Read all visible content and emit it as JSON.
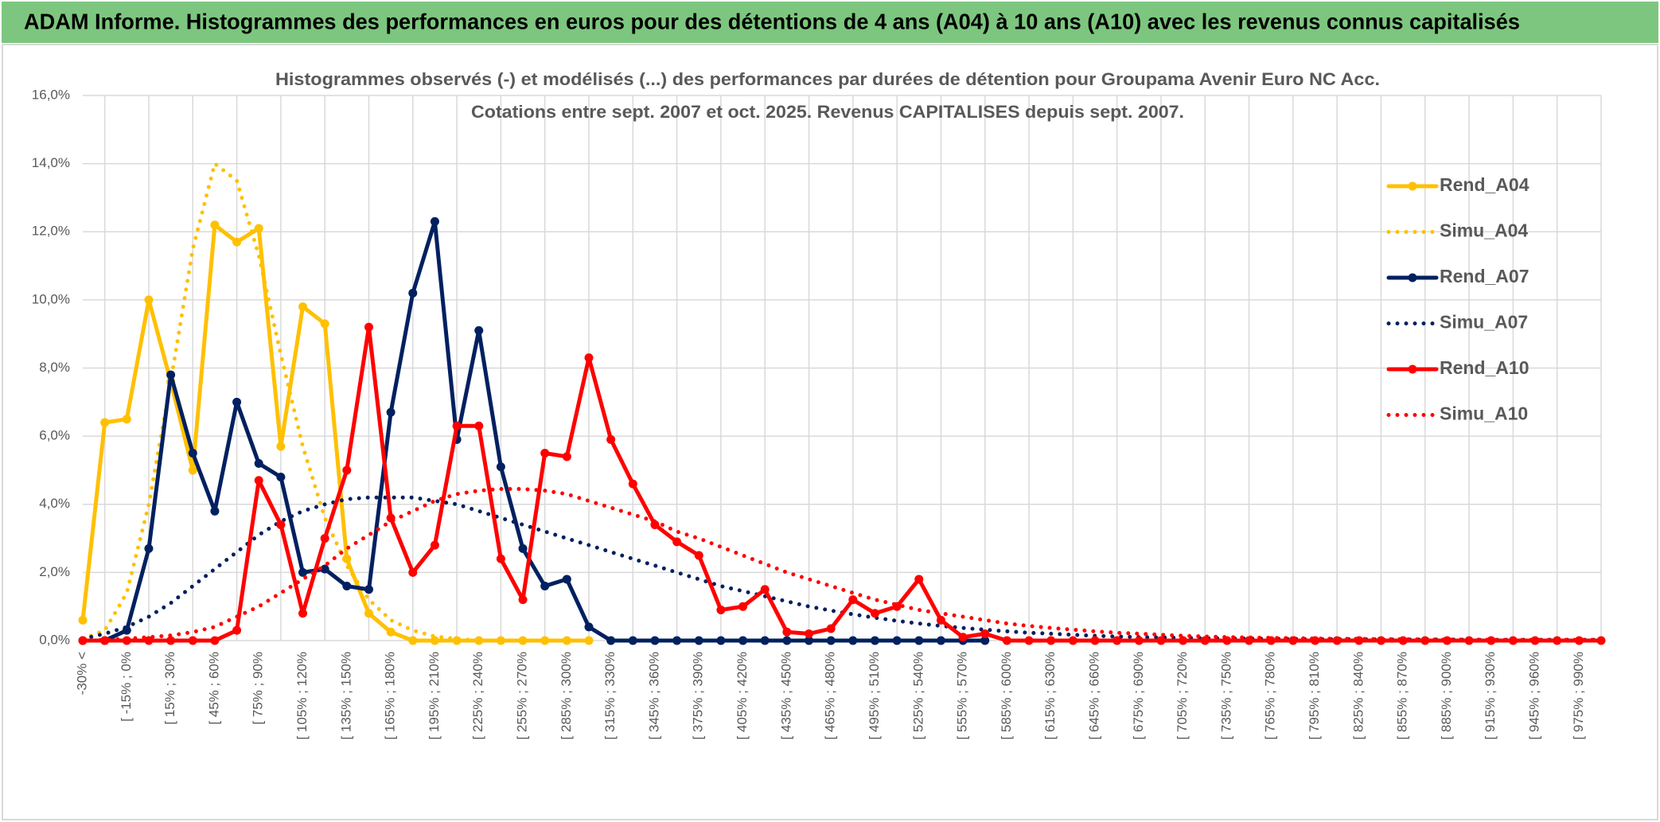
{
  "header": {
    "title": "ADAM Informe. Histogrammes des performances en euros pour des détentions de 4 ans (A04) à 10 ans (A10) avec les revenus connus capitalisés"
  },
  "chart_data": {
    "type": "line",
    "title": "Histogrammes observés (-) et modélisés (...) des performances par durées de détention pour Groupama Avenir Euro NC Acc.",
    "subtitle": "Cotations entre sept. 2007 et oct. 2025. Revenus CAPITALISES depuis sept. 2007.",
    "categories": [
      "-30% <",
      null,
      "[ -15% ; 0%",
      null,
      "[ 15% ; 30%",
      null,
      "[ 45% ; 60%",
      null,
      "[ 75% ; 90%",
      null,
      "[ 105% ; 120%",
      null,
      "[ 135% ; 150%",
      null,
      "[ 165% ; 180%",
      null,
      "[ 195% ; 210%",
      null,
      "[ 225% ; 240%",
      null,
      "[ 255% ; 270%",
      null,
      "[ 285% ; 300%",
      null,
      "[ 315% ; 330%",
      null,
      "[ 345% ; 360%",
      null,
      "[ 375% ; 390%",
      null,
      "[ 405% ; 420%",
      null,
      "[ 435% ; 450%",
      null,
      "[ 465% ; 480%",
      null,
      "[ 495% ; 510%",
      null,
      "[ 525% ; 540%",
      null,
      "[ 555% ; 570%",
      null,
      "[ 585% ; 600%",
      null,
      "[ 615% ; 630%",
      null,
      "[ 645% ; 660%",
      null,
      "[ 675% ; 690%",
      null,
      "[ 705% ; 720%",
      null,
      "[ 735% ; 750%",
      null,
      "[ 765% ; 780%",
      null,
      "[ 795% ; 810%",
      null,
      "[ 825% ; 840%",
      null,
      "[ 855% ; 870%",
      null,
      "[ 885% ; 900%",
      null,
      "[ 915% ; 930%",
      null,
      "[ 945% ; 960%",
      null,
      "[ 975% ; 990%",
      null
    ],
    "ylim": [
      0,
      16
    ],
    "yticks": [
      {
        "value": 0,
        "label": "0,0%"
      },
      {
        "value": 2,
        "label": "2,0%"
      },
      {
        "value": 4,
        "label": "4,0%"
      },
      {
        "value": 6,
        "label": "6,0%"
      },
      {
        "value": 8,
        "label": "8,0%"
      },
      {
        "value": 10,
        "label": "10,0%"
      },
      {
        "value": 12,
        "label": "12,0%"
      },
      {
        "value": 14,
        "label": "14,0%"
      },
      {
        "value": 16,
        "label": "16,0%"
      }
    ],
    "grid": true,
    "legend": "right",
    "series": [
      {
        "name": "Rend_A04",
        "color": "#FFC000",
        "style": "solid",
        "markers": true,
        "values": [
          0.6,
          6.4,
          6.5,
          10.0,
          7.6,
          5.0,
          12.2,
          11.7,
          12.1,
          5.7,
          9.8,
          9.3,
          2.4,
          0.8,
          0.25,
          0,
          0,
          0,
          0,
          0,
          0,
          0,
          0,
          0,
          null,
          null,
          null,
          null,
          null,
          null,
          null,
          null,
          null,
          null,
          null,
          null,
          null,
          null,
          null,
          null,
          null,
          null,
          null,
          null,
          null,
          null,
          null,
          null,
          null,
          null,
          null,
          null,
          null,
          null,
          null,
          null,
          null,
          null,
          null,
          null,
          null,
          null,
          null,
          null,
          null,
          null,
          null,
          null,
          null,
          null
        ]
      },
      {
        "name": "Simu_A04",
        "color": "#FFC000",
        "style": "dotted",
        "markers": false,
        "values": [
          0.05,
          0.3,
          1.4,
          4.0,
          7.6,
          11.5,
          14.0,
          13.5,
          11.3,
          8.4,
          5.7,
          3.6,
          2.2,
          1.2,
          0.6,
          0.3,
          0.12,
          0.05,
          0,
          0,
          0,
          0,
          0,
          0,
          null,
          null,
          null,
          null,
          null,
          null,
          null,
          null,
          null,
          null,
          null,
          null,
          null,
          null,
          null,
          null,
          null,
          null,
          null,
          null,
          null,
          null,
          null,
          null,
          null,
          null,
          null,
          null,
          null,
          null,
          null,
          null,
          null,
          null,
          null,
          null,
          null,
          null,
          null,
          null,
          null,
          null,
          null,
          null,
          null,
          null
        ]
      },
      {
        "name": "Rend_A07",
        "color": "#002060",
        "style": "solid",
        "markers": true,
        "values": [
          0,
          0,
          0.3,
          2.7,
          7.8,
          5.5,
          3.8,
          7.0,
          5.2,
          4.8,
          2.0,
          2.1,
          1.6,
          1.5,
          6.7,
          10.2,
          12.3,
          5.9,
          9.1,
          5.1,
          2.7,
          1.6,
          1.8,
          0.4,
          0,
          0,
          0,
          0,
          0,
          0,
          0,
          0,
          0,
          0,
          0,
          0,
          0,
          0,
          0,
          0,
          0,
          0,
          null,
          null,
          null,
          null,
          null,
          null,
          null,
          null,
          null,
          null,
          null,
          null,
          null,
          null,
          null,
          null,
          null,
          null,
          null,
          null,
          null,
          null,
          null,
          null,
          null,
          null,
          null,
          null
        ]
      },
      {
        "name": "Simu_A07",
        "color": "#002060",
        "style": "dotted",
        "markers": false,
        "values": [
          0.05,
          0.2,
          0.4,
          0.7,
          1.1,
          1.6,
          2.1,
          2.6,
          3.1,
          3.5,
          3.8,
          4.0,
          4.15,
          4.2,
          4.2,
          4.2,
          4.1,
          4.0,
          3.8,
          3.6,
          3.4,
          3.2,
          3.0,
          2.8,
          2.6,
          2.4,
          2.2,
          2.0,
          1.8,
          1.6,
          1.45,
          1.3,
          1.15,
          1.0,
          0.88,
          0.77,
          0.67,
          0.58,
          0.5,
          0.43,
          0.37,
          0.32,
          0.27,
          0.23,
          0.2,
          0.17,
          0.14,
          0.12,
          0.1,
          0.09,
          0.08,
          0.07,
          0.06,
          0.06,
          0.05,
          0.05,
          0.04,
          0.04,
          0.04,
          0.03,
          0.03,
          0.03,
          0.03,
          0.02,
          0.02,
          0.02,
          0.02,
          0.02,
          0.02,
          0.02
        ]
      },
      {
        "name": "Rend_A10",
        "color": "#FF0000",
        "style": "solid",
        "markers": true,
        "values": [
          0,
          0,
          0,
          0,
          0,
          0,
          0,
          0.3,
          4.7,
          3.4,
          0.8,
          3.0,
          5.0,
          9.2,
          3.6,
          2.0,
          2.8,
          6.3,
          6.3,
          2.4,
          1.2,
          5.5,
          5.4,
          8.3,
          5.9,
          4.6,
          3.4,
          2.9,
          2.5,
          0.9,
          1.0,
          1.5,
          0.25,
          0.2,
          0.35,
          1.2,
          0.8,
          1.0,
          1.8,
          0.6,
          0.1,
          0.2,
          0,
          0,
          0,
          0,
          0,
          0,
          0,
          0,
          0,
          0,
          0,
          0,
          0,
          0,
          0,
          0,
          0,
          0,
          0,
          0,
          0,
          0,
          0,
          0,
          0,
          0,
          0,
          0
        ]
      },
      {
        "name": "Simu_A10",
        "color": "#FF0000",
        "style": "dotted",
        "markers": false,
        "values": [
          0,
          0.02,
          0.05,
          0.1,
          0.15,
          0.25,
          0.4,
          0.7,
          1.0,
          1.4,
          1.8,
          2.2,
          2.7,
          3.1,
          3.5,
          3.8,
          4.1,
          4.3,
          4.4,
          4.45,
          4.45,
          4.4,
          4.3,
          4.1,
          3.9,
          3.7,
          3.5,
          3.2,
          3.0,
          2.75,
          2.5,
          2.25,
          2.0,
          1.8,
          1.6,
          1.4,
          1.2,
          1.05,
          0.9,
          0.8,
          0.7,
          0.6,
          0.5,
          0.43,
          0.37,
          0.32,
          0.27,
          0.23,
          0.2,
          0.17,
          0.14,
          0.12,
          0.1,
          0.09,
          0.08,
          0.07,
          0.06,
          0.05,
          0.05,
          0.04,
          0.04,
          0.03,
          0.03,
          0.03,
          0.02,
          0.02,
          0.02,
          0.02,
          0.02,
          0.02
        ]
      }
    ]
  }
}
